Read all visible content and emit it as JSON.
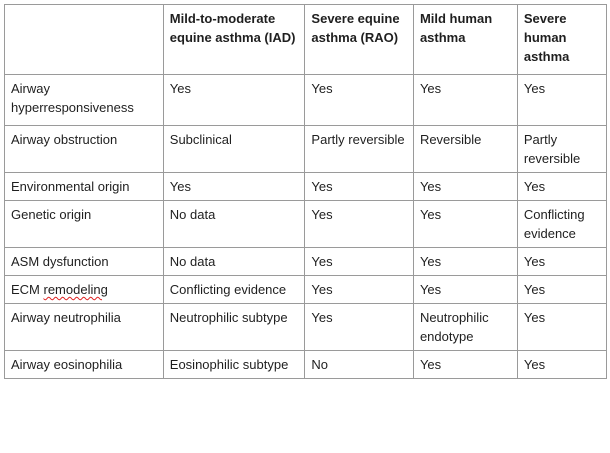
{
  "table": {
    "headers": [
      "",
      "Mild-to-moderate equine asthma (IAD)",
      "Severe equine asthma (RAO)",
      "Mild human asthma",
      "Severe human asthma"
    ],
    "rows": [
      {
        "label": "Airway hyperresponsiveness",
        "cells": [
          "Yes",
          "Yes",
          "Yes",
          "Yes"
        ]
      },
      {
        "label": "Airway obstruction",
        "cells": [
          "Subclinical",
          "Partly reversible",
          "Reversible",
          "Partly reversible"
        ]
      },
      {
        "label": "Environmental origin",
        "cells": [
          "Yes",
          "Yes",
          "Yes",
          "Yes"
        ]
      },
      {
        "label": "Genetic origin",
        "cells": [
          "No data",
          "Yes",
          "Yes",
          "Conflicting evidence"
        ]
      },
      {
        "label": "ASM dysfunction",
        "cells": [
          "No data",
          "Yes",
          "Yes",
          "Yes"
        ]
      },
      {
        "label_prefix": "ECM ",
        "label_misspelled": "remodeling",
        "cells": [
          "Conflicting evidence",
          "Yes",
          "Yes",
          "Yes"
        ]
      },
      {
        "label": "Airway neutrophilia",
        "cells": [
          "Neutrophilic subtype",
          "Yes",
          "Neutrophilic endotype",
          "Yes"
        ]
      },
      {
        "label": "Airway eosinophilia",
        "cells": [
          "Eosinophilic subtype",
          "No",
          "Yes",
          "Yes"
        ]
      }
    ]
  }
}
